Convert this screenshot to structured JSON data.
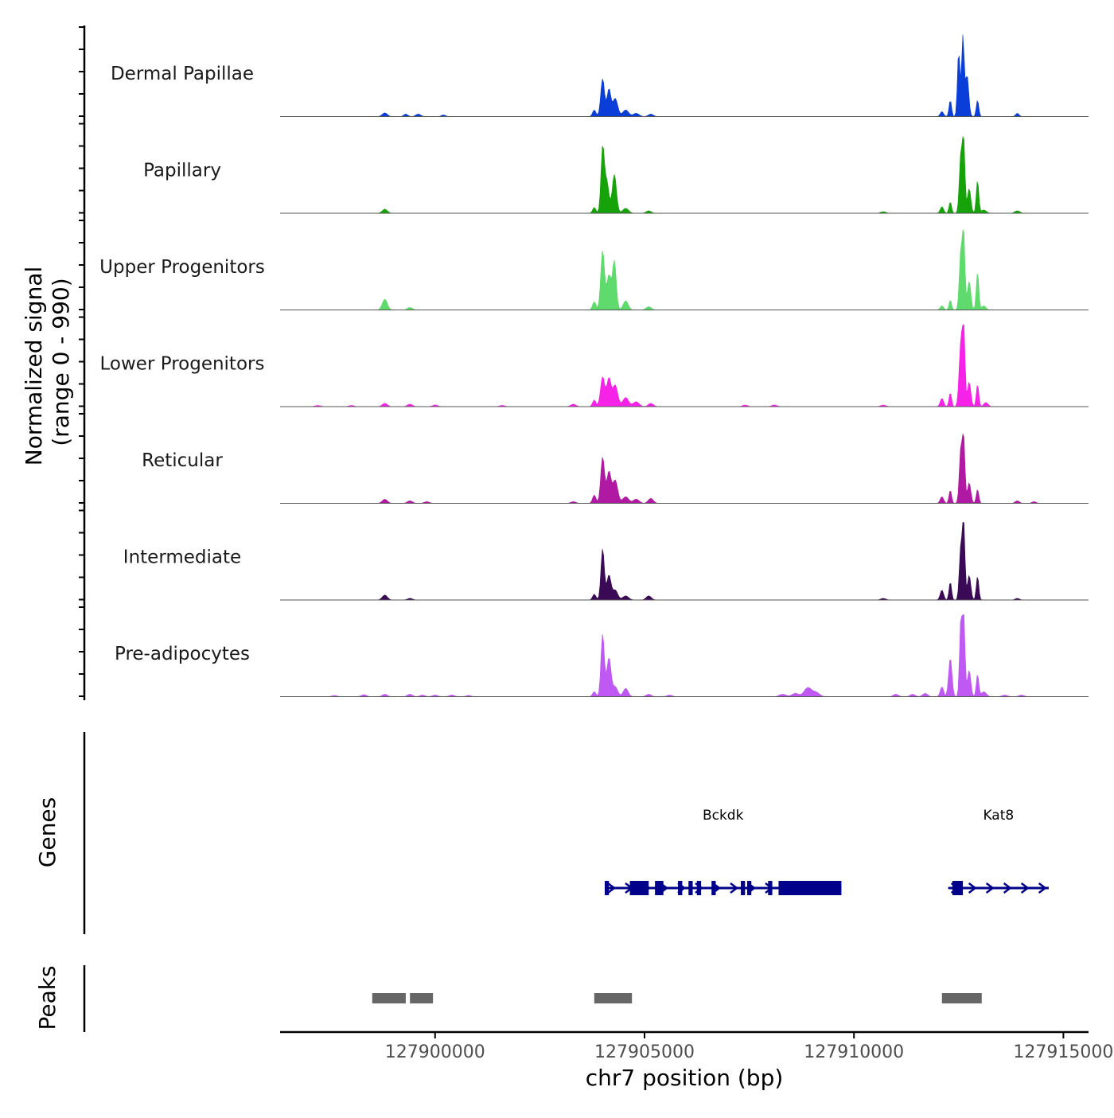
{
  "chart_data": {
    "type": "area",
    "title": "",
    "chromosome": "chr7",
    "xlabel": "chr7 position (bp)",
    "ylabel": "Normalized signal",
    "ylabel_range": "(range 0 - 990)",
    "xlim": [
      127896300,
      127915600
    ],
    "ylim": [
      0,
      990
    ],
    "x_ticks": [
      127900000,
      127905000,
      127910000,
      127915000
    ],
    "x_tick_labels": [
      "127900000",
      "127905000",
      "127910000",
      "127915000"
    ],
    "series": [
      {
        "name": "Dermal Papillae",
        "color": "#0b3ed8",
        "peaks": [
          [
            127898800,
            45,
            60
          ],
          [
            127899300,
            30,
            50
          ],
          [
            127899600,
            30,
            60
          ],
          [
            127900200,
            20,
            50
          ],
          [
            127903800,
            80,
            40
          ],
          [
            127904000,
            460,
            45
          ],
          [
            127904150,
            330,
            45
          ],
          [
            127904300,
            220,
            60
          ],
          [
            127904550,
            80,
            70
          ],
          [
            127904800,
            40,
            70
          ],
          [
            127905150,
            30,
            60
          ],
          [
            127912100,
            60,
            40
          ],
          [
            127912300,
            200,
            30
          ],
          [
            127912500,
            790,
            30
          ],
          [
            127912600,
            990,
            30
          ],
          [
            127912700,
            500,
            40
          ],
          [
            127912950,
            200,
            30
          ],
          [
            127913900,
            40,
            40
          ]
        ]
      },
      {
        "name": "Papillary",
        "color": "#16a30a",
        "peaks": [
          [
            127898800,
            50,
            60
          ],
          [
            127903800,
            70,
            40
          ],
          [
            127904000,
            780,
            40
          ],
          [
            127904100,
            380,
            50
          ],
          [
            127904280,
            470,
            50
          ],
          [
            127904550,
            60,
            70
          ],
          [
            127905100,
            30,
            60
          ],
          [
            127910700,
            20,
            60
          ],
          [
            127912100,
            80,
            40
          ],
          [
            127912300,
            140,
            30
          ],
          [
            127912550,
            700,
            35
          ],
          [
            127912620,
            850,
            30
          ],
          [
            127912750,
            300,
            40
          ],
          [
            127912950,
            400,
            30
          ],
          [
            127913100,
            40,
            60
          ],
          [
            127913900,
            30,
            60
          ]
        ]
      },
      {
        "name": "Upper Progenitors",
        "color": "#5edb6c",
        "peaks": [
          [
            127898800,
            130,
            60
          ],
          [
            127899400,
            30,
            60
          ],
          [
            127903800,
            100,
            40
          ],
          [
            127904000,
            720,
            45
          ],
          [
            127904150,
            420,
            50
          ],
          [
            127904280,
            590,
            45
          ],
          [
            127904550,
            110,
            60
          ],
          [
            127905100,
            40,
            60
          ],
          [
            127912100,
            50,
            40
          ],
          [
            127912300,
            120,
            30
          ],
          [
            127912550,
            700,
            35
          ],
          [
            127912620,
            900,
            30
          ],
          [
            127912750,
            350,
            40
          ],
          [
            127912950,
            460,
            30
          ],
          [
            127913100,
            50,
            50
          ]
        ]
      },
      {
        "name": "Lower Progenitors",
        "color": "#f622e8",
        "peaks": [
          [
            127897200,
            15,
            60
          ],
          [
            127898000,
            15,
            60
          ],
          [
            127898800,
            40,
            60
          ],
          [
            127899400,
            30,
            60
          ],
          [
            127900000,
            20,
            60
          ],
          [
            127901600,
            15,
            60
          ],
          [
            127903300,
            30,
            60
          ],
          [
            127903800,
            80,
            40
          ],
          [
            127904000,
            360,
            50
          ],
          [
            127904150,
            340,
            50
          ],
          [
            127904300,
            260,
            60
          ],
          [
            127904550,
            110,
            70
          ],
          [
            127904800,
            60,
            70
          ],
          [
            127905150,
            40,
            60
          ],
          [
            127907400,
            20,
            60
          ],
          [
            127908100,
            20,
            60
          ],
          [
            127910700,
            20,
            60
          ],
          [
            127912100,
            100,
            40
          ],
          [
            127912300,
            170,
            30
          ],
          [
            127912550,
            750,
            40
          ],
          [
            127912620,
            990,
            30
          ],
          [
            127912750,
            300,
            40
          ],
          [
            127912950,
            270,
            30
          ],
          [
            127913150,
            50,
            50
          ]
        ]
      },
      {
        "name": "Reticular",
        "color": "#b01aa2",
        "peaks": [
          [
            127898800,
            50,
            60
          ],
          [
            127899400,
            30,
            60
          ],
          [
            127899800,
            20,
            60
          ],
          [
            127903300,
            20,
            60
          ],
          [
            127903800,
            100,
            40
          ],
          [
            127904000,
            560,
            45
          ],
          [
            127904150,
            380,
            50
          ],
          [
            127904300,
            280,
            60
          ],
          [
            127904550,
            80,
            70
          ],
          [
            127904800,
            50,
            70
          ],
          [
            127905150,
            60,
            60
          ],
          [
            127912100,
            80,
            40
          ],
          [
            127912300,
            160,
            30
          ],
          [
            127912550,
            650,
            35
          ],
          [
            127912620,
            760,
            30
          ],
          [
            127912750,
            250,
            40
          ],
          [
            127912950,
            170,
            30
          ],
          [
            127913900,
            30,
            50
          ],
          [
            127914300,
            20,
            50
          ]
        ]
      },
      {
        "name": "Intermediate",
        "color": "#3b0a57",
        "peaks": [
          [
            127898800,
            60,
            60
          ],
          [
            127899400,
            20,
            60
          ],
          [
            127903800,
            70,
            40
          ],
          [
            127904000,
            620,
            40
          ],
          [
            127904150,
            300,
            50
          ],
          [
            127904300,
            120,
            60
          ],
          [
            127904550,
            50,
            70
          ],
          [
            127905100,
            50,
            60
          ],
          [
            127910700,
            20,
            60
          ],
          [
            127912100,
            120,
            40
          ],
          [
            127912300,
            220,
            30
          ],
          [
            127912550,
            630,
            35
          ],
          [
            127912620,
            900,
            30
          ],
          [
            127912750,
            300,
            40
          ],
          [
            127912950,
            290,
            30
          ],
          [
            127913900,
            20,
            50
          ]
        ]
      },
      {
        "name": "Pre-adipocytes",
        "color": "#c059f4",
        "peaks": [
          [
            127897600,
            15,
            60
          ],
          [
            127898300,
            25,
            60
          ],
          [
            127898800,
            30,
            60
          ],
          [
            127899400,
            30,
            60
          ],
          [
            127899700,
            20,
            60
          ],
          [
            127900000,
            20,
            60
          ],
          [
            127900400,
            20,
            60
          ],
          [
            127900800,
            15,
            60
          ],
          [
            127903800,
            60,
            40
          ],
          [
            127904000,
            760,
            40
          ],
          [
            127904150,
            470,
            50
          ],
          [
            127904300,
            120,
            60
          ],
          [
            127904550,
            100,
            60
          ],
          [
            127905100,
            30,
            60
          ],
          [
            127905600,
            20,
            60
          ],
          [
            127908300,
            30,
            80
          ],
          [
            127908600,
            40,
            80
          ],
          [
            127908900,
            110,
            90
          ],
          [
            127909100,
            50,
            80
          ],
          [
            127911000,
            30,
            60
          ],
          [
            127911400,
            30,
            60
          ],
          [
            127911700,
            40,
            60
          ],
          [
            127912100,
            120,
            40
          ],
          [
            127912300,
            470,
            40
          ],
          [
            127912550,
            900,
            30
          ],
          [
            127912620,
            1000,
            30
          ],
          [
            127912750,
            320,
            40
          ],
          [
            127912950,
            270,
            30
          ],
          [
            127913100,
            60,
            60
          ],
          [
            127913600,
            20,
            60
          ],
          [
            127914000,
            20,
            60
          ]
        ]
      }
    ],
    "genes": [
      {
        "name": "Bckdk",
        "start": 127904050,
        "end": 127909700,
        "strand": "+",
        "exons": [
          [
            127904050,
            127904150
          ],
          [
            127904650,
            127905100
          ],
          [
            127905250,
            127905450
          ],
          [
            127905800,
            127905900
          ],
          [
            127906050,
            127906150
          ],
          [
            127906250,
            127906350
          ],
          [
            127906600,
            127906700
          ],
          [
            127907300,
            127907400
          ],
          [
            127907450,
            127907550
          ],
          [
            127907950,
            127908050
          ],
          [
            127908200,
            127909700
          ]
        ]
      },
      {
        "name": "Kat8",
        "start": 127912250,
        "end": 127914650,
        "strand": "+",
        "exons": [
          [
            127912350,
            127912600
          ]
        ]
      }
    ],
    "peaks_track": [
      [
        127898500,
        127899300
      ],
      [
        127899400,
        127899950
      ],
      [
        127903800,
        127904700
      ],
      [
        127912100,
        127913050
      ]
    ],
    "track_titles": {
      "genes": "Genes",
      "peaks": "Peaks"
    }
  },
  "colors": {
    "gene": "#00008b",
    "peak": "#666666",
    "axis": "#000000",
    "baseline": "#555555"
  }
}
